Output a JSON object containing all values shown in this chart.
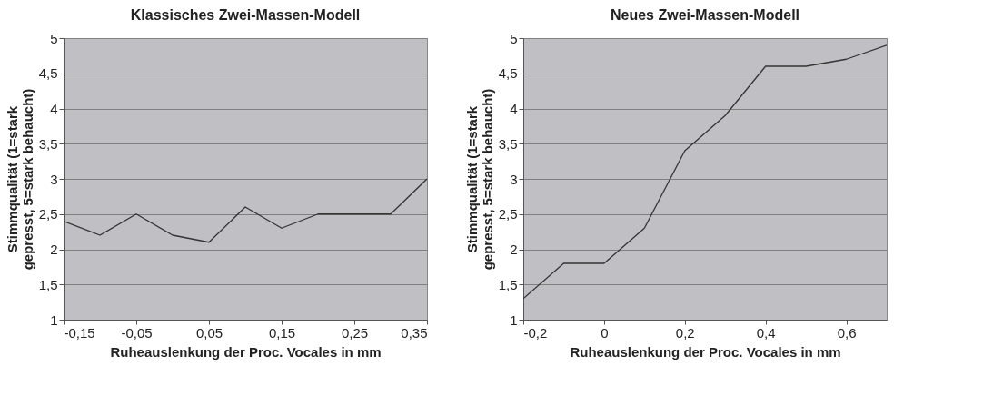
{
  "chart_data": [
    {
      "type": "line",
      "title": "Klassisches Zwei-Massen-Modell",
      "xlabel": "Ruheauslenkung der Proc. Vocales in mm",
      "ylabel": "Stimmqualität (1=stark\ngepresst, 5=stark behaucht)",
      "x": [
        -0.15,
        -0.1,
        -0.05,
        0,
        0.05,
        0.1,
        0.15,
        0.2,
        0.25,
        0.3,
        0.35
      ],
      "series": [
        {
          "color": "#333333",
          "values": [
            2.4,
            2.2,
            2.5,
            2.2,
            2.1,
            2.6,
            2.3,
            2.5,
            2.5,
            2.5,
            3.0
          ]
        }
      ],
      "xlim": [
        -0.15,
        0.35
      ],
      "xticks": [
        {
          "value": -0.15,
          "label": "-0,15"
        },
        {
          "value": -0.05,
          "label": "-0,05"
        },
        {
          "value": 0.05,
          "label": "0,05"
        },
        {
          "value": 0.15,
          "label": "0,15"
        },
        {
          "value": 0.25,
          "label": "0,25"
        },
        {
          "value": 0.35,
          "label": "0,35"
        }
      ],
      "ylim": [
        1,
        5
      ],
      "yticks": [
        1,
        {
          "value": 1.5,
          "label": "1,5"
        },
        2,
        {
          "value": 2.5,
          "label": "2,5"
        },
        3,
        {
          "value": 3.5,
          "label": "3,5"
        },
        4,
        {
          "value": 4.5,
          "label": "4,5"
        },
        5
      ],
      "grid": "y",
      "marker": "none",
      "line_style": "solid"
    },
    {
      "type": "line",
      "title": "Neues Zwei-Massen-Modell",
      "xlabel": "Ruheauslenkung der Proc. Vocales in mm",
      "ylabel": "Stimmqualität (1=stark\ngepresst, 5=stark behaucht)",
      "x": [
        -0.2,
        -0.1,
        0,
        0.1,
        0.2,
        0.3,
        0.4,
        0.5,
        0.6,
        0.7
      ],
      "series": [
        {
          "color": "#333333",
          "values": [
            1.3,
            1.8,
            1.8,
            2.3,
            3.4,
            3.9,
            4.6,
            4.6,
            4.7,
            4.9
          ]
        }
      ],
      "xlim": [
        -0.2,
        0.7
      ],
      "xticks": [
        {
          "value": -0.2,
          "label": "-0,2"
        },
        0,
        {
          "value": 0.2,
          "label": "0,2"
        },
        {
          "value": 0.4,
          "label": "0,4"
        },
        {
          "value": 0.6,
          "label": "0,6"
        }
      ],
      "ylim": [
        1,
        5
      ],
      "yticks": [
        1,
        {
          "value": 1.5,
          "label": "1,5"
        },
        2,
        {
          "value": 2.5,
          "label": "2,5"
        },
        3,
        {
          "value": 3.5,
          "label": "3,5"
        },
        4,
        {
          "value": 4.5,
          "label": "4,5"
        },
        5
      ],
      "grid": "y",
      "marker": "none",
      "line_style": "solid"
    }
  ]
}
